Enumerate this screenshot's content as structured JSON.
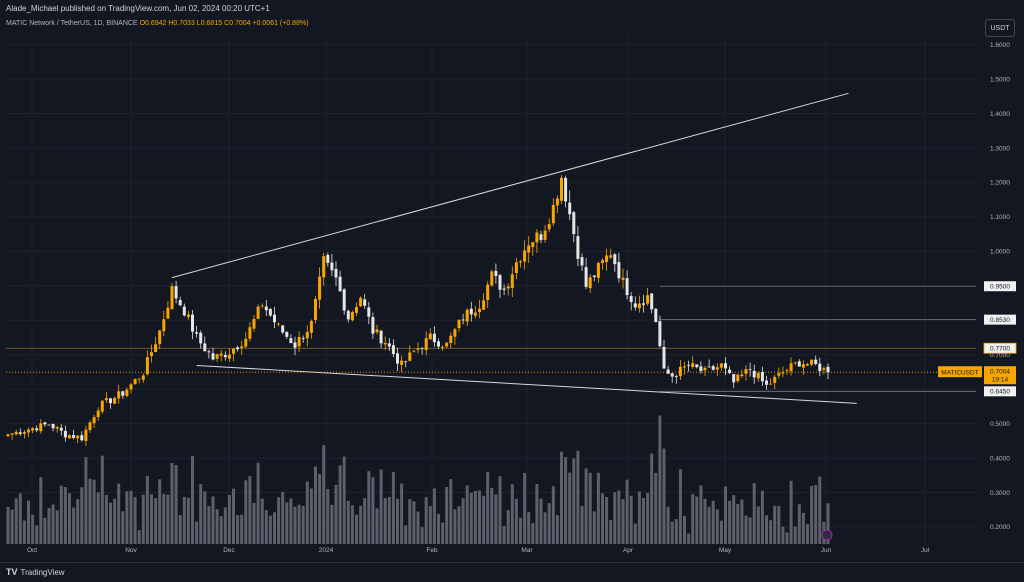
{
  "header": {
    "publisher": "Alade_Michael published on TradingView.com, Jun 02, 2024 00:20 UTC+1"
  },
  "legend": {
    "symbol": "MATIC Network / TetherUS, 1D, BINANCE",
    "open": "O0.6942",
    "high": "H0.7033",
    "low": "L0.6815",
    "close": "C0.7004",
    "change": "+0.0061 (+0.88%)"
  },
  "currency_button": "USDT",
  "price_tags": {
    "symbol_label": "MATICUSDT",
    "last_price": "0.7004",
    "countdown": "19:14",
    "levels": [
      "0.9500",
      "0.8530",
      "0.7700",
      "0.6450"
    ]
  },
  "footer": {
    "brand": "TradingView",
    "logo_mark": "TV"
  },
  "colors": {
    "bull": "#f7a600",
    "bear": "#e6e6e6",
    "background": "#131722",
    "trendline": "#d8d8d8",
    "level_line": "#787b86"
  },
  "chart_data": {
    "type": "candlestick",
    "title": "MATIC Network / TetherUS, 1D, BINANCE",
    "y_ticks": [
      "1.6000",
      "1.5000",
      "1.4000",
      "1.3000",
      "1.2000",
      "1.1000",
      "1.0000",
      "0.9000",
      "0.8000",
      "0.7000",
      "0.6000",
      "0.5000",
      "0.4000",
      "0.3000",
      "0.2000"
    ],
    "ylim": [
      0.2,
      1.6
    ],
    "x_ticks": [
      "Oct",
      "Nov",
      "Dec",
      "2024",
      "Feb",
      "Mar",
      "Apr",
      "May",
      "Jun",
      "Jul"
    ],
    "anchors": [
      {
        "d": 0,
        "p": 0.52
      },
      {
        "d": 10,
        "p": 0.55
      },
      {
        "d": 14,
        "p": 0.52
      },
      {
        "d": 18,
        "p": 0.51
      },
      {
        "d": 22,
        "p": 0.6
      },
      {
        "d": 28,
        "p": 0.64
      },
      {
        "d": 33,
        "p": 0.7
      },
      {
        "d": 37,
        "p": 0.82
      },
      {
        "d": 40,
        "p": 0.94
      },
      {
        "d": 43,
        "p": 0.88
      },
      {
        "d": 46,
        "p": 0.8
      },
      {
        "d": 50,
        "p": 0.74
      },
      {
        "d": 54,
        "p": 0.76
      },
      {
        "d": 58,
        "p": 0.8
      },
      {
        "d": 62,
        "p": 0.9
      },
      {
        "d": 66,
        "p": 0.83
      },
      {
        "d": 70,
        "p": 0.78
      },
      {
        "d": 74,
        "p": 0.84
      },
      {
        "d": 77,
        "p": 1.02
      },
      {
        "d": 80,
        "p": 0.97
      },
      {
        "d": 83,
        "p": 0.86
      },
      {
        "d": 86,
        "p": 0.92
      },
      {
        "d": 89,
        "p": 0.82
      },
      {
        "d": 92,
        "p": 0.79
      },
      {
        "d": 96,
        "p": 0.72
      },
      {
        "d": 99,
        "p": 0.76
      },
      {
        "d": 103,
        "p": 0.8
      },
      {
        "d": 107,
        "p": 0.78
      },
      {
        "d": 111,
        "p": 0.86
      },
      {
        "d": 115,
        "p": 0.9
      },
      {
        "d": 118,
        "p": 0.98
      },
      {
        "d": 121,
        "p": 0.94
      },
      {
        "d": 124,
        "p": 1.02
      },
      {
        "d": 127,
        "p": 1.08
      },
      {
        "d": 130,
        "p": 1.1
      },
      {
        "d": 133,
        "p": 1.18
      },
      {
        "d": 135,
        "p": 1.27
      },
      {
        "d": 137,
        "p": 1.16
      },
      {
        "d": 139,
        "p": 1.05
      },
      {
        "d": 141,
        "p": 0.95
      },
      {
        "d": 144,
        "p": 1.0
      },
      {
        "d": 147,
        "p": 1.05
      },
      {
        "d": 150,
        "p": 0.96
      },
      {
        "d": 153,
        "p": 0.9
      },
      {
        "d": 156,
        "p": 0.92
      },
      {
        "d": 158,
        "p": 0.85
      },
      {
        "d": 160,
        "p": 0.7
      },
      {
        "d": 162,
        "p": 0.69
      },
      {
        "d": 166,
        "p": 0.72
      },
      {
        "d": 170,
        "p": 0.7
      },
      {
        "d": 174,
        "p": 0.72
      },
      {
        "d": 177,
        "p": 0.67
      },
      {
        "d": 181,
        "p": 0.71
      },
      {
        "d": 185,
        "p": 0.66
      },
      {
        "d": 189,
        "p": 0.7
      },
      {
        "d": 193,
        "p": 0.73
      },
      {
        "d": 197,
        "p": 0.72
      },
      {
        "d": 200,
        "p": 0.7004
      }
    ],
    "volume_ticks_note": "volume histogram in bottom pane",
    "support_line": {
      "from": {
        "d": 46,
        "p": 0.72
      },
      "to": {
        "d": 207,
        "p": 0.61
      }
    },
    "resistance_line": {
      "from": {
        "d": 40,
        "p": 0.975
      },
      "to": {
        "d": 205,
        "p": 1.51
      }
    },
    "horizontal_levels": [
      0.95,
      0.853,
      0.77,
      0.645
    ]
  }
}
